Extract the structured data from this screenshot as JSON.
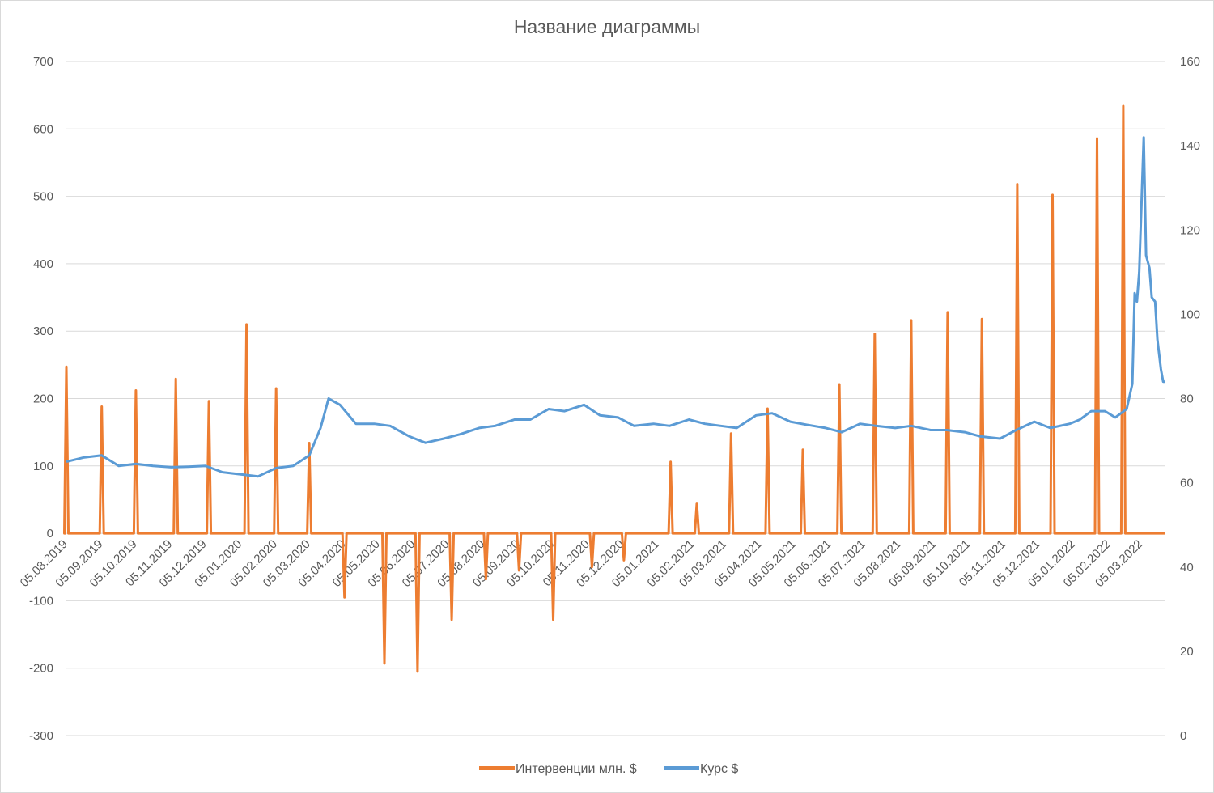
{
  "chart_data": {
    "type": "line",
    "title": "Название диаграммы",
    "xlabel": "",
    "ylabel": "",
    "grid": true,
    "legend_position": "bottom",
    "y_left": {
      "ylim": [
        -300,
        700
      ],
      "ticks": [
        -300,
        -200,
        -100,
        0,
        100,
        200,
        300,
        400,
        500,
        600,
        700
      ]
    },
    "y_right": {
      "ylim": [
        0,
        160
      ],
      "ticks": [
        0,
        20,
        40,
        60,
        80,
        100,
        120,
        140,
        160
      ]
    },
    "x_range": [
      "05.08.2019",
      "26.03.2022"
    ],
    "x_tick_labels": [
      "05.08.2019",
      "05.09.2019",
      "05.10.2019",
      "05.11.2019",
      "05.12.2019",
      "05.01.2020",
      "05.02.2020",
      "05.03.2020",
      "05.04.2020",
      "05.05.2020",
      "05.06.2020",
      "05.07.2020",
      "05.08.2020",
      "05.09.2020",
      "05.10.2020",
      "05.11.2020",
      "05.12.2020",
      "05.01.2021",
      "05.02.2021",
      "05.03.2021",
      "05.04.2021",
      "05.05.2021",
      "05.06.2021",
      "05.07.2021",
      "05.08.2021",
      "05.09.2021",
      "05.10.2021",
      "05.11.2021",
      "05.12.2021",
      "05.01.2022",
      "05.02.2022",
      "05.03.2022"
    ],
    "series": [
      {
        "name": "Интервенции млн. $",
        "axis": "left",
        "color": "#ED7D31",
        "spikes": [
          {
            "date": "05.08.2019",
            "value": 247
          },
          {
            "date": "05.09.2019",
            "value": 188
          },
          {
            "date": "05.10.2019",
            "value": 212
          },
          {
            "date": "09.11.2019",
            "value": 229
          },
          {
            "date": "08.12.2019",
            "value": 196
          },
          {
            "date": "10.01.2020",
            "value": 310
          },
          {
            "date": "05.02.2020",
            "value": 215
          },
          {
            "date": "05.03.2020",
            "value": 134
          },
          {
            "date": "05.04.2020",
            "value": -95
          },
          {
            "date": "10.05.2020",
            "value": -193
          },
          {
            "date": "08.06.2020",
            "value": -205
          },
          {
            "date": "08.07.2020",
            "value": -128
          },
          {
            "date": "07.08.2020",
            "value": -68
          },
          {
            "date": "05.09.2020",
            "value": -55
          },
          {
            "date": "05.10.2020",
            "value": -128
          },
          {
            "date": "08.11.2020",
            "value": -50
          },
          {
            "date": "06.12.2020",
            "value": -40
          },
          {
            "date": "16.01.2021",
            "value": 106
          },
          {
            "date": "08.02.2021",
            "value": 45
          },
          {
            "date": "10.03.2021",
            "value": 148
          },
          {
            "date": "11.04.2021",
            "value": 185
          },
          {
            "date": "12.05.2021",
            "value": 124
          },
          {
            "date": "13.06.2021",
            "value": 221
          },
          {
            "date": "14.07.2021",
            "value": 296
          },
          {
            "date": "15.08.2021",
            "value": 316
          },
          {
            "date": "16.09.2021",
            "value": 328
          },
          {
            "date": "16.10.2021",
            "value": 318
          },
          {
            "date": "16.11.2021",
            "value": 518
          },
          {
            "date": "17.12.2021",
            "value": 502
          },
          {
            "date": "25.01.2022",
            "value": 586
          },
          {
            "date": "17.02.2022",
            "value": 634
          }
        ]
      },
      {
        "name": "Курс $",
        "axis": "right",
        "color": "#5B9BD5",
        "points": [
          {
            "date": "05.08.2019",
            "value": 65
          },
          {
            "date": "20.08.2019",
            "value": 66
          },
          {
            "date": "05.09.2019",
            "value": 66.5
          },
          {
            "date": "20.09.2019",
            "value": 64
          },
          {
            "date": "05.10.2019",
            "value": 64.5
          },
          {
            "date": "20.10.2019",
            "value": 64
          },
          {
            "date": "05.11.2019",
            "value": 63.7
          },
          {
            "date": "20.11.2019",
            "value": 63.8
          },
          {
            "date": "05.12.2019",
            "value": 64
          },
          {
            "date": "20.12.2019",
            "value": 62.5
          },
          {
            "date": "05.01.2020",
            "value": 62
          },
          {
            "date": "20.01.2020",
            "value": 61.5
          },
          {
            "date": "05.02.2020",
            "value": 63.5
          },
          {
            "date": "20.02.2020",
            "value": 64
          },
          {
            "date": "05.03.2020",
            "value": 66.5
          },
          {
            "date": "15.03.2020",
            "value": 73
          },
          {
            "date": "22.03.2020",
            "value": 80
          },
          {
            "date": "01.04.2020",
            "value": 78.5
          },
          {
            "date": "15.04.2020",
            "value": 74
          },
          {
            "date": "01.05.2020",
            "value": 74
          },
          {
            "date": "15.05.2020",
            "value": 73.5
          },
          {
            "date": "01.06.2020",
            "value": 71
          },
          {
            "date": "15.06.2020",
            "value": 69.5
          },
          {
            "date": "01.07.2020",
            "value": 70.5
          },
          {
            "date": "15.07.2020",
            "value": 71.5
          },
          {
            "date": "01.08.2020",
            "value": 73
          },
          {
            "date": "15.08.2020",
            "value": 73.5
          },
          {
            "date": "01.09.2020",
            "value": 75
          },
          {
            "date": "15.09.2020",
            "value": 75
          },
          {
            "date": "01.10.2020",
            "value": 77.5
          },
          {
            "date": "15.10.2020",
            "value": 77
          },
          {
            "date": "01.11.2020",
            "value": 78.5
          },
          {
            "date": "15.11.2020",
            "value": 76
          },
          {
            "date": "01.12.2020",
            "value": 75.5
          },
          {
            "date": "15.12.2020",
            "value": 73.5
          },
          {
            "date": "01.01.2021",
            "value": 74
          },
          {
            "date": "15.01.2021",
            "value": 73.5
          },
          {
            "date": "01.02.2021",
            "value": 75
          },
          {
            "date": "15.02.2021",
            "value": 74
          },
          {
            "date": "01.03.2021",
            "value": 73.5
          },
          {
            "date": "15.03.2021",
            "value": 73
          },
          {
            "date": "01.04.2021",
            "value": 76
          },
          {
            "date": "15.04.2021",
            "value": 76.5
          },
          {
            "date": "01.05.2021",
            "value": 74.5
          },
          {
            "date": "15.05.2021",
            "value": 73.8
          },
          {
            "date": "01.06.2021",
            "value": 73
          },
          {
            "date": "15.06.2021",
            "value": 72
          },
          {
            "date": "01.07.2021",
            "value": 74
          },
          {
            "date": "15.07.2021",
            "value": 73.5
          },
          {
            "date": "01.08.2021",
            "value": 73
          },
          {
            "date": "15.08.2021",
            "value": 73.5
          },
          {
            "date": "01.09.2021",
            "value": 72.5
          },
          {
            "date": "15.09.2021",
            "value": 72.5
          },
          {
            "date": "01.10.2021",
            "value": 72
          },
          {
            "date": "15.10.2021",
            "value": 71
          },
          {
            "date": "01.11.2021",
            "value": 70.5
          },
          {
            "date": "15.11.2021",
            "value": 72.5
          },
          {
            "date": "01.12.2021",
            "value": 74.5
          },
          {
            "date": "15.12.2021",
            "value": 73
          },
          {
            "date": "01.01.2022",
            "value": 74
          },
          {
            "date": "10.01.2022",
            "value": 75
          },
          {
            "date": "20.01.2022",
            "value": 77
          },
          {
            "date": "01.02.2022",
            "value": 77
          },
          {
            "date": "10.02.2022",
            "value": 75.5
          },
          {
            "date": "20.02.2022",
            "value": 77.5
          },
          {
            "date": "25.02.2022",
            "value": 83.5
          },
          {
            "date": "27.02.2022",
            "value": 105
          },
          {
            "date": "01.03.2022",
            "value": 103
          },
          {
            "date": "03.03.2022",
            "value": 110
          },
          {
            "date": "05.03.2022",
            "value": 126
          },
          {
            "date": "07.03.2022",
            "value": 142
          },
          {
            "date": "09.03.2022",
            "value": 114
          },
          {
            "date": "12.03.2022",
            "value": 111
          },
          {
            "date": "14.03.2022",
            "value": 104
          },
          {
            "date": "17.03.2022",
            "value": 103
          },
          {
            "date": "19.03.2022",
            "value": 94
          },
          {
            "date": "22.03.2022",
            "value": 87
          },
          {
            "date": "24.03.2022",
            "value": 84
          },
          {
            "date": "26.03.2022",
            "value": 84
          }
        ]
      }
    ]
  }
}
